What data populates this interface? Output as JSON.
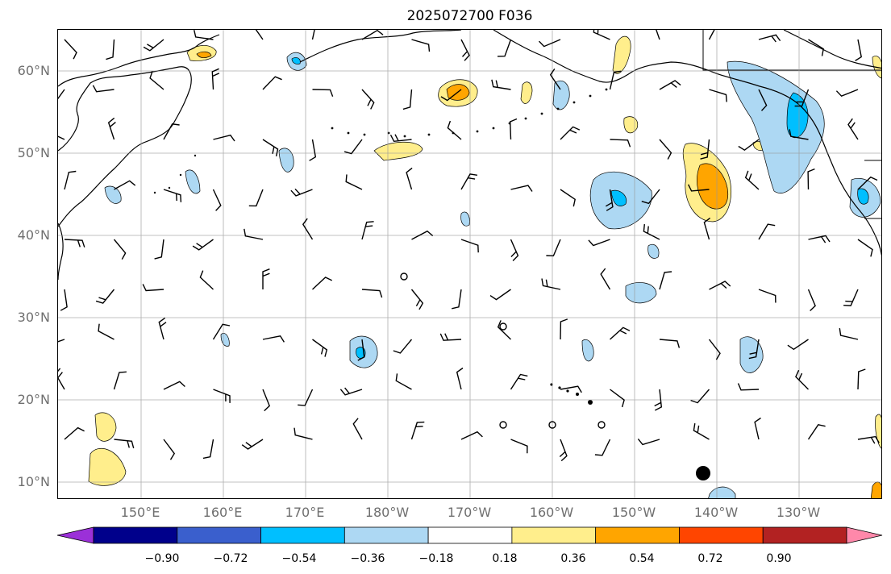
{
  "title": "2025072700 F036",
  "map": {
    "lat_labels": [
      "60°N",
      "50°N",
      "40°N",
      "30°N",
      "20°N",
      "10°N"
    ],
    "lon_labels": [
      "150°E",
      "160°E",
      "170°E",
      "180°W",
      "170°W",
      "160°W",
      "150°W",
      "140°W",
      "130°W"
    ]
  },
  "colorbar": {
    "ticks": [
      "−0.90",
      "−0.72",
      "−0.54",
      "−0.36",
      "−0.18",
      "0.18",
      "0.36",
      "0.54",
      "0.72",
      "0.90"
    ],
    "colors": [
      "#9b30d8",
      "#00008b",
      "#3a5fcd",
      "#00bfff",
      "#add8f3",
      "#ffffff",
      "#ffee8c",
      "#ffa500",
      "#ff4500",
      "#b22222",
      "#ff88aa"
    ]
  }
}
